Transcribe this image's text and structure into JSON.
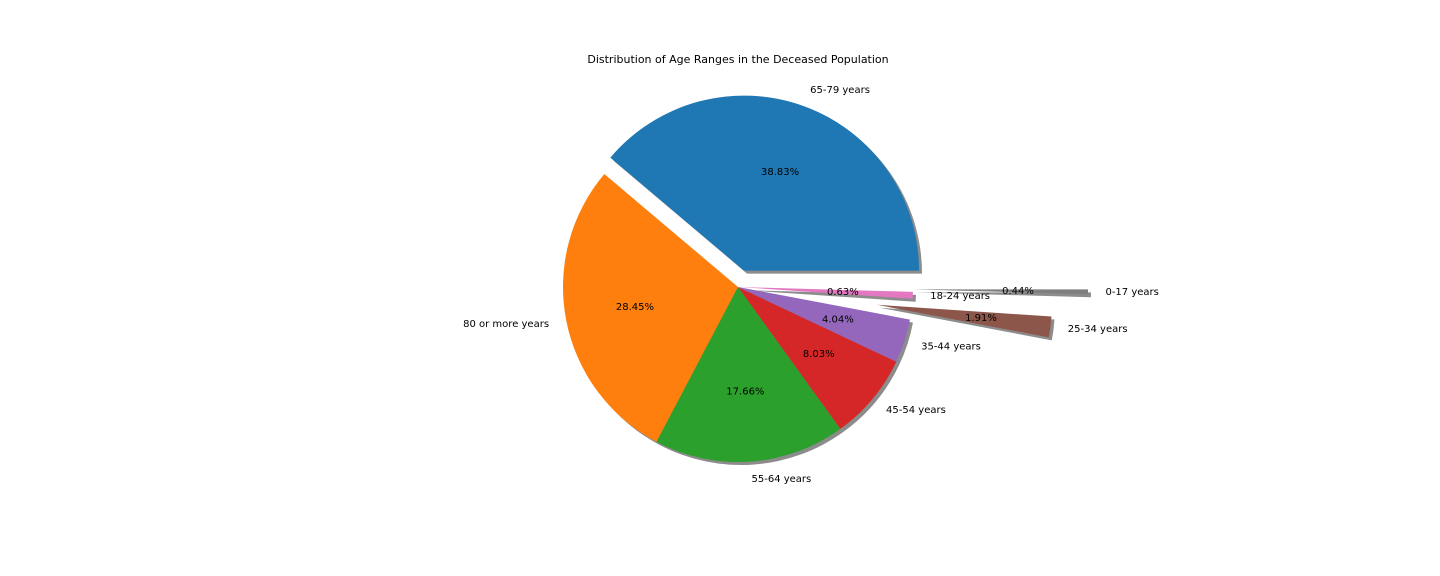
{
  "chart_data": {
    "type": "pie",
    "title": "Distribution of Age Ranges in the Deceased Population",
    "start_angle_deg": 0,
    "direction": "counterclockwise",
    "shadow": true,
    "slices": [
      {
        "label": "65-79 years",
        "value": 38.83,
        "pct_text": "38.83%",
        "color": "#1f77b4",
        "explode": 0.1
      },
      {
        "label": "80 or more years",
        "value": 28.45,
        "pct_text": "28.45%",
        "color": "#ff7f0e",
        "explode": 0
      },
      {
        "label": "55-64 years",
        "value": 17.66,
        "pct_text": "17.66%",
        "color": "#2ca02c",
        "explode": 0
      },
      {
        "label": "45-54 years",
        "value": 8.03,
        "pct_text": "8.03%",
        "color": "#d62728",
        "explode": 0
      },
      {
        "label": "35-44 years",
        "value": 4.04,
        "pct_text": "4.04%",
        "color": "#9467bd",
        "explode": 0
      },
      {
        "label": "25-34 years",
        "value": 1.91,
        "pct_text": "1.91%",
        "color": "#8c564b",
        "explode": 0.8
      },
      {
        "label": "18-24 years",
        "value": 0.63,
        "pct_text": "0.63%",
        "color": "#e377c2",
        "explode": 0
      },
      {
        "label": "0-17 years",
        "value": 0.44,
        "pct_text": "0.44%",
        "color": "#7f7f7f",
        "explode": 1.0
      }
    ]
  }
}
